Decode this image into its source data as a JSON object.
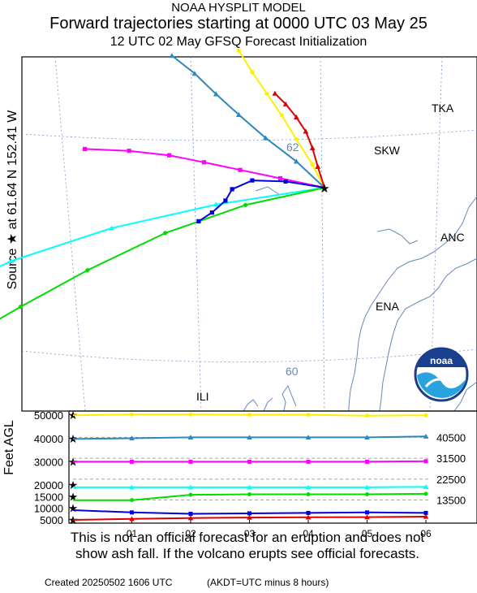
{
  "header": {
    "model": "NOAA HYSPLIT MODEL",
    "title": "Forward trajectories starting at 0000 UTC 03 May 25",
    "subtitle": "12 UTC 02 May     GFSQ  Forecast Initialization"
  },
  "source_label": "Source ★  at   61.64 N  152.41 W",
  "map": {
    "places": [
      "TKA",
      "SKW",
      "ANC",
      "ENA",
      "ILI"
    ],
    "lat_labels": [
      "62",
      "60"
    ],
    "logo_text": "noaa"
  },
  "colors": {
    "50000": "#ffee00",
    "40000": "#2e88c0",
    "30000": "#ff00ff",
    "20000": "#00ffff",
    "15000": "#00dd00",
    "10000": "#0000dd",
    "5000": "#dd0000"
  },
  "chart_data": {
    "type": "line",
    "title": "Forward trajectories starting at 0000 UTC 03 May 25",
    "ylabel": "Feet AGL",
    "x_tick_labels": [
      "01",
      "02",
      "03",
      "04",
      "05",
      "06"
    ],
    "y_tick_labels": [
      "50000",
      "40000",
      "30000",
      "20000",
      "15000",
      "10000",
      "5000"
    ],
    "right_labels": [
      "40500",
      "31500",
      "22500",
      "13500"
    ],
    "hours": [
      0,
      1,
      2,
      3,
      4,
      5,
      6
    ],
    "series": [
      {
        "start": 50000,
        "color": "#ffee00",
        "marker": "circle",
        "heights": [
          50000,
          50300,
          50300,
          50200,
          50200,
          49800,
          50000
        ]
      },
      {
        "start": 40000,
        "color": "#2e88c0",
        "marker": "triangle",
        "heights": [
          39800,
          40100,
          40500,
          40500,
          40500,
          40500,
          40900
        ]
      },
      {
        "start": 30000,
        "color": "#ff00ff",
        "marker": "square",
        "heights": [
          30000,
          30000,
          30000,
          30000,
          30000,
          30000,
          30200
        ]
      },
      {
        "start": 20000,
        "color": "#00ffff",
        "marker": "triangle",
        "heights": [
          19000,
          19000,
          19000,
          19000,
          19000,
          19000,
          19200
        ]
      },
      {
        "start": 15000,
        "color": "#00dd00",
        "marker": "circle",
        "heights": [
          13500,
          13500,
          15800,
          16000,
          16000,
          16000,
          16200
        ]
      },
      {
        "start": 10000,
        "color": "#0000dd",
        "marker": "square",
        "heights": [
          9200,
          8200,
          7600,
          7800,
          8000,
          8200,
          8000
        ]
      },
      {
        "start": 5000,
        "color": "#dd0000",
        "marker": "triangle",
        "heights": [
          5000,
          5400,
          5800,
          6000,
          6100,
          6200,
          6400
        ]
      }
    ],
    "trajectories": [
      {
        "start": 50000,
        "color": "#ffee00",
        "marker": "circle",
        "lonlat": [
          [
            -152.41,
            61.64
          ],
          [
            -152.5,
            61.85
          ],
          [
            -152.62,
            62.08
          ],
          [
            -152.73,
            62.3
          ],
          [
            -152.84,
            62.5
          ],
          [
            -152.95,
            62.7
          ],
          [
            -153.05,
            62.9
          ]
        ]
      },
      {
        "start": 40000,
        "color": "#2e88c0",
        "marker": "triangle",
        "lonlat": [
          [
            -152.41,
            61.64
          ],
          [
            -152.62,
            61.88
          ],
          [
            -152.85,
            62.1
          ],
          [
            -153.05,
            62.32
          ],
          [
            -153.22,
            62.52
          ],
          [
            -153.38,
            62.72
          ],
          [
            -153.55,
            62.9
          ]
        ]
      },
      {
        "start": 30000,
        "color": "#ff00ff",
        "marker": "square",
        "lonlat": [
          [
            -152.41,
            61.64
          ],
          [
            -152.74,
            61.73
          ],
          [
            -153.04,
            61.82
          ],
          [
            -153.31,
            61.91
          ],
          [
            -153.57,
            62.0
          ],
          [
            -153.87,
            62.08
          ],
          [
            -154.2,
            62.15
          ]
        ]
      },
      {
        "start": 20000,
        "color": "#00ffff",
        "marker": "triangle",
        "lonlat": [
          [
            -152.41,
            61.64
          ],
          [
            -153.22,
            61.52
          ],
          [
            -154.0,
            61.4
          ],
          [
            -154.75,
            61.25
          ],
          [
            -155.4,
            61.05
          ],
          [
            -155.75,
            60.78
          ],
          [
            -156.05,
            60.45
          ]
        ]
      },
      {
        "start": 15000,
        "color": "#00dd00",
        "marker": "circle",
        "lonlat": [
          [
            -152.41,
            61.64
          ],
          [
            -153.0,
            61.5
          ],
          [
            -153.6,
            61.3
          ],
          [
            -154.18,
            61.05
          ],
          [
            -154.68,
            60.82
          ],
          [
            -155.05,
            60.65
          ],
          [
            -155.28,
            60.5
          ]
        ]
      },
      {
        "start": 10000,
        "color": "#0000dd",
        "marker": "square",
        "lonlat": [
          [
            -152.41,
            61.64
          ],
          [
            -152.7,
            61.7
          ],
          [
            -152.95,
            61.72
          ],
          [
            -153.1,
            61.65
          ],
          [
            -153.15,
            61.55
          ],
          [
            -153.25,
            61.45
          ],
          [
            -153.35,
            61.38
          ]
        ]
      },
      {
        "start": 5000,
        "color": "#dd0000",
        "marker": "triangle",
        "lonlat": [
          [
            -152.41,
            61.64
          ],
          [
            -152.46,
            61.83
          ],
          [
            -152.5,
            62.0
          ],
          [
            -152.55,
            62.15
          ],
          [
            -152.62,
            62.28
          ],
          [
            -152.7,
            62.4
          ],
          [
            -152.78,
            62.5
          ]
        ]
      }
    ]
  },
  "footer": {
    "disclaimer_line1": "This is not an official forecast for an eruption and does not",
    "disclaimer_line2": "show ash fall. If the volcano erupts see official forecasts.",
    "created": "Created 20250502 1606 UTC",
    "timezone_note": "(AKDT=UTC minus 8 hours)"
  }
}
